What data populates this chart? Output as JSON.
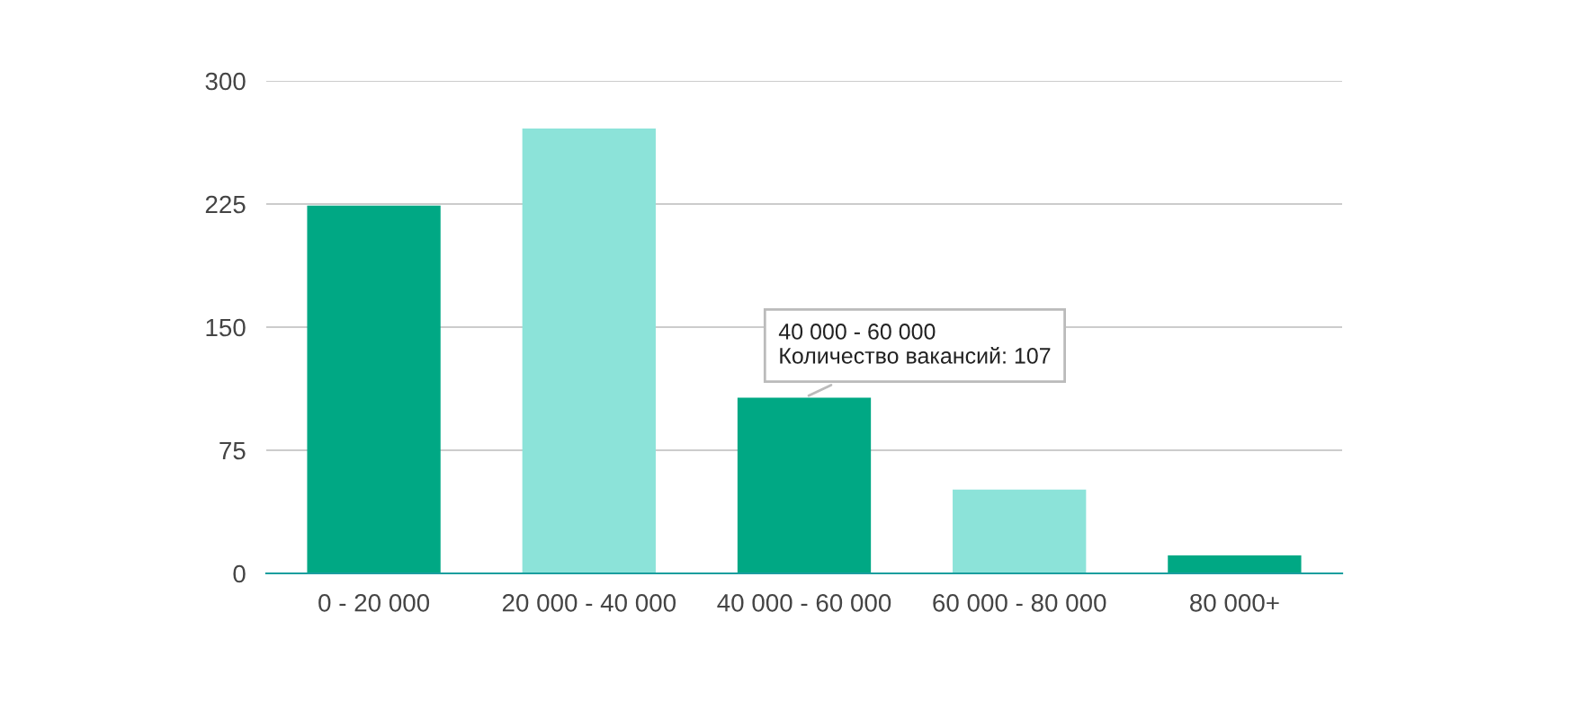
{
  "chart_data": {
    "type": "bar",
    "categories": [
      "0 - 20 000",
      "20 000 - 40 000",
      "40 000 - 60 000",
      "60 000 - 80 000",
      "80 000+"
    ],
    "values": [
      224,
      271,
      107,
      51,
      11
    ],
    "colors": [
      "#00a884",
      "#8ce3d9",
      "#00a884",
      "#8ce3d9",
      "#00a884"
    ],
    "ylim": [
      0,
      300
    ],
    "yticks": [
      0,
      75,
      150,
      225,
      300
    ],
    "grid": "y",
    "legend": false,
    "annotations": [
      {
        "text": "40 000 - 60 000\nКоличество вакансий: 107",
        "x": "40 000 - 60 000",
        "y": 107
      }
    ]
  }
}
